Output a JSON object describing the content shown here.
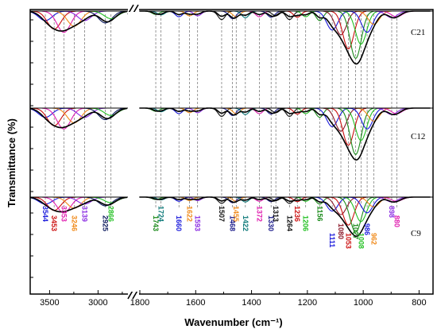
{
  "chart_data": {
    "type": "line",
    "title": "",
    "xlabel": "Wavenumber (cm⁻¹)",
    "ylabel": "Transmittance (%)",
    "x_axis_break": true,
    "x_segments": [
      {
        "range": [
          3700,
          2700
        ],
        "ticks": [
          3500,
          3000
        ]
      },
      {
        "range": [
          1800,
          750
        ],
        "ticks": [
          1800,
          1600,
          1400,
          1200,
          1000,
          800
        ]
      }
    ],
    "x_tick_labels": [
      "3500",
      "3000",
      "1800",
      "1600",
      "1400",
      "1200",
      "1000",
      "800"
    ],
    "y_tick_labels_shown": false,
    "dashed_reference_lines": true,
    "grid": false,
    "series": [
      {
        "name": "C21",
        "measured_envelope": "black"
      },
      {
        "name": "C12",
        "measured_envelope": "black"
      },
      {
        "name": "C9",
        "measured_envelope": "black"
      }
    ],
    "fitted_peaks": [
      {
        "wavenumber": 3544,
        "label": "3544",
        "color": "#1a1adb",
        "depth": 0.2
      },
      {
        "wavenumber": 3453,
        "label": "3453",
        "color": "#cc1010",
        "depth": 0.38
      },
      {
        "wavenumber": 3353,
        "label": "3353",
        "color": "#e01fb0",
        "depth": 0.45
      },
      {
        "wavenumber": 3246,
        "label": "3246",
        "color": "#f08a1a",
        "depth": 0.32
      },
      {
        "wavenumber": 3139,
        "label": "3139",
        "color": "#8a2be2",
        "depth": 0.2
      },
      {
        "wavenumber": 2925,
        "label": "2925",
        "color": "#0d1b5e",
        "depth": 0.25
      },
      {
        "wavenumber": 2866,
        "label": "2866",
        "color": "#22c022",
        "depth": 0.16
      },
      {
        "wavenumber": 1743,
        "label": "1743",
        "color": "#1a8a1a",
        "depth": 0.07
      },
      {
        "wavenumber": 1724,
        "label": "1724",
        "color": "#0e7a7a",
        "depth": 0.08
      },
      {
        "wavenumber": 1660,
        "label": "1660",
        "color": "#1a1adb",
        "depth": 0.12
      },
      {
        "wavenumber": 1622,
        "label": "1622",
        "color": "#f08a1a",
        "depth": 0.1
      },
      {
        "wavenumber": 1593,
        "label": "1593",
        "color": "#8a2be2",
        "depth": 0.1
      },
      {
        "wavenumber": 1507,
        "label": "1507",
        "color": "#111111",
        "depth": 0.18
      },
      {
        "wavenumber": 1468,
        "label": "1468",
        "color": "#1a1a8a",
        "depth": 0.16
      },
      {
        "wavenumber": 1455,
        "label": "1455",
        "color": "#f08a1a",
        "depth": 0.12
      },
      {
        "wavenumber": 1422,
        "label": "1422",
        "color": "#0e7a7a",
        "depth": 0.14
      },
      {
        "wavenumber": 1372,
        "label": "1372",
        "color": "#e01fb0",
        "depth": 0.12
      },
      {
        "wavenumber": 1330,
        "label": "1330",
        "color": "#1a1a8a",
        "depth": 0.13
      },
      {
        "wavenumber": 1313,
        "label": "1313",
        "color": "#111111",
        "depth": 0.1
      },
      {
        "wavenumber": 1264,
        "label": "1264",
        "color": "#111111",
        "depth": 0.18
      },
      {
        "wavenumber": 1236,
        "label": "1236",
        "color": "#cc1010",
        "depth": 0.13
      },
      {
        "wavenumber": 1206,
        "label": "1206",
        "color": "#22c022",
        "depth": 0.12
      },
      {
        "wavenumber": 1156,
        "label": "1156",
        "color": "#1a8a1a",
        "depth": 0.2
      },
      {
        "wavenumber": 1111,
        "label": "1111",
        "color": "#1a1adb",
        "depth": 0.4
      },
      {
        "wavenumber": 1080,
        "label": "1080",
        "color": "#8b1a2a",
        "depth": 0.5
      },
      {
        "wavenumber": 1053,
        "label": "1053",
        "color": "#cc1010",
        "depth": 0.8
      },
      {
        "wavenumber": 1027,
        "label": "1027",
        "color": "#1a8a1a",
        "depth": 1.0
      },
      {
        "wavenumber": 1008,
        "label": "1008",
        "color": "#22c022",
        "depth": 0.7
      },
      {
        "wavenumber": 986,
        "label": "986",
        "color": "#1a1adb",
        "depth": 0.45
      },
      {
        "wavenumber": 962,
        "label": "962",
        "color": "#f08a1a",
        "depth": 0.28
      },
      {
        "wavenumber": 898,
        "label": "898",
        "color": "#8a2be2",
        "depth": 0.14
      },
      {
        "wavenumber": 880,
        "label": "880",
        "color": "#e01fb0",
        "depth": 0.12
      }
    ]
  }
}
